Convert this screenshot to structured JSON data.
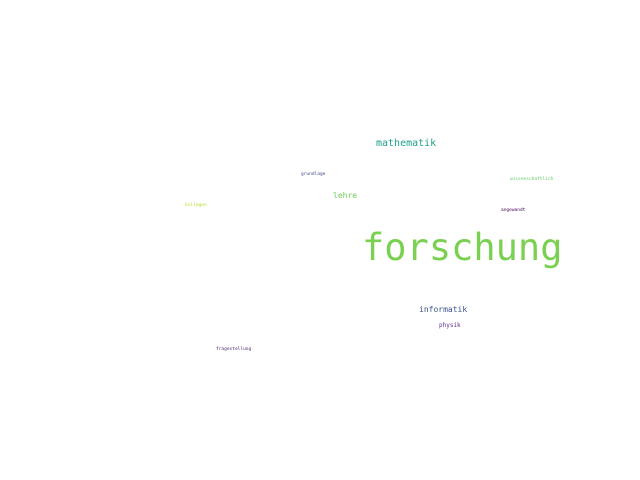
{
  "words": [
    {
      "key": "forschung",
      "text": "forschung",
      "color": "#7ad151",
      "weight": 1.0
    },
    {
      "key": "mathematik",
      "text": "mathematik",
      "color": "#1f9e89",
      "weight": 0.27
    },
    {
      "key": "lehre",
      "text": "lehre",
      "color": "#6ccd5a",
      "weight": 0.2
    },
    {
      "key": "informatik",
      "text": "informatik",
      "color": "#3b528b",
      "weight": 0.2
    },
    {
      "key": "physik",
      "text": "physik",
      "color": "#5d2f8e",
      "weight": 0.15
    },
    {
      "key": "grundlage",
      "text": "grundlage",
      "color": "#3e4a89",
      "weight": 0.12
    },
    {
      "key": "wissenschaftlich",
      "text": "wissenschaftlich",
      "color": "#5ec962",
      "weight": 0.12
    },
    {
      "key": "kollegen",
      "text": "kollegen",
      "color": "#b5de2b",
      "weight": 0.12
    },
    {
      "key": "angewandt",
      "text": "angewandt",
      "color": "#440154",
      "weight": 0.12
    },
    {
      "key": "fragestellung",
      "text": "fragestellung",
      "color": "#481f70",
      "weight": 0.12
    }
  ]
}
